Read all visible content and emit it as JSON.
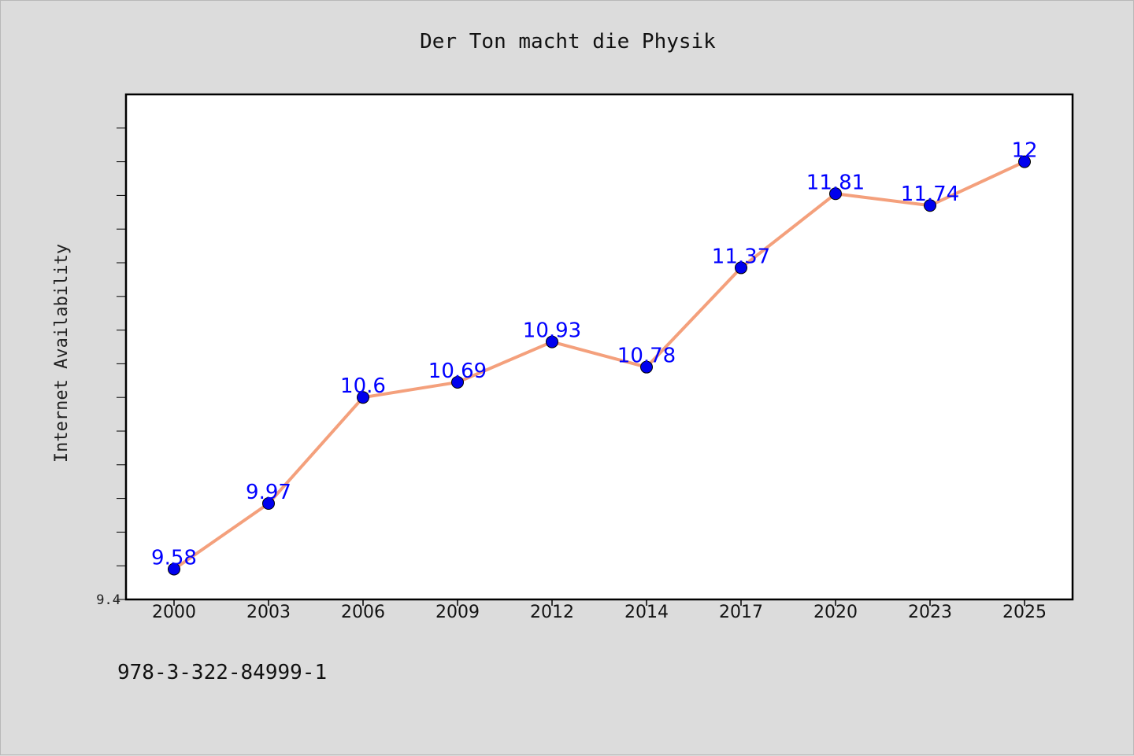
{
  "chart_data": {
    "type": "line",
    "title": "Der Ton macht die Physik",
    "ylabel": "Internet Availability",
    "xlabel": "",
    "categories": [
      "2000",
      "2003",
      "2006",
      "2009",
      "2012",
      "2014",
      "2017",
      "2020",
      "2023",
      "2025"
    ],
    "series": [
      {
        "values": [
          9.58,
          9.97,
          10.6,
          10.69,
          10.93,
          10.78,
          11.37,
          11.81,
          11.74,
          12.0
        ],
        "labels": [
          "9.58",
          "9.97",
          "10.6",
          "10.69",
          "10.93",
          "10.78",
          "11.37",
          "11.81",
          "11.74",
          "12"
        ],
        "line_color": "#f4a07c",
        "marker_color": "#0000ee"
      }
    ],
    "ylim": [
      9.4,
      12.4
    ],
    "ytick_labels": [
      "9.4"
    ],
    "grid": false,
    "legend": "none"
  },
  "footer": {
    "text": "978-3-322-84999-1"
  }
}
